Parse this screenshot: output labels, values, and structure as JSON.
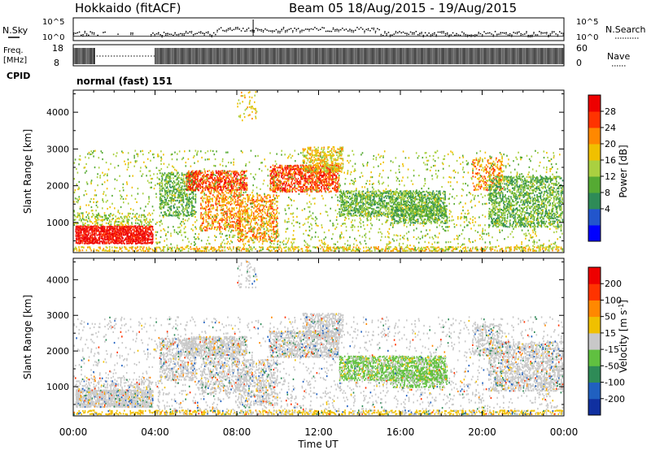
{
  "header": {
    "station": "Hokkaido (fitACF)",
    "beam_info": "Beam 05  18/Aug/2015 - 19/Aug/2015"
  },
  "top_panels": {
    "nsky_label": "N.Sky",
    "nsearch_label": "N.Search",
    "freq_label_line1": "Freq.",
    "freq_label_line2": "[MHz]",
    "nave_label": "Nave",
    "cpid_label": "CPID",
    "cpid_text": "normal (fast) 151",
    "nsky_ticks": [
      "10^5",
      "10^0"
    ],
    "nsearch_ticks": [
      "10^5",
      "10^0"
    ],
    "freq_ticks": [
      "18",
      "8"
    ],
    "nave_ticks": [
      "60",
      "0"
    ]
  },
  "chart_data": [
    {
      "type": "heatmap",
      "name": "power",
      "ylabel": "Slant Range [km]",
      "xlabel": "",
      "xlim": [
        "00:00",
        "00:00"
      ],
      "ylim": [
        180,
        4600
      ],
      "yticks": [
        "1000",
        "2000",
        "3000",
        "4000"
      ],
      "colorbar_label": "Power [dB]",
      "colorbar_ticks": [
        "28",
        "24",
        "20",
        "16",
        "12",
        "8",
        "4"
      ],
      "colorbar_colors": [
        "#0000ff",
        "#2255cc",
        "#2e8b57",
        "#55aa33",
        "#aad040",
        "#f0c000",
        "#ff8800",
        "#ff3300",
        "#ee0000"
      ]
    },
    {
      "type": "heatmap",
      "name": "velocity",
      "ylabel": "Slant Range [km]",
      "xlabel": "Time UT",
      "xticks": [
        "00:00",
        "04:00",
        "08:00",
        "12:00",
        "16:00",
        "20:00",
        "00:00"
      ],
      "ylim": [
        180,
        4600
      ],
      "yticks": [
        "1000",
        "2000",
        "3000",
        "4000"
      ],
      "colorbar_label": "Velocity [m s",
      "colorbar_label_sup": "-1",
      "colorbar_label_end": "]",
      "colorbar_ticks": [
        "200",
        "100",
        "50",
        "15",
        "-15",
        "-50",
        "-100",
        "-200"
      ],
      "colorbar_colors": [
        "#1030a0",
        "#2060c0",
        "#2e8b57",
        "#60c040",
        "#c8c8c8",
        "#f0c000",
        "#ff8800",
        "#ff3300",
        "#ee0000"
      ]
    }
  ]
}
